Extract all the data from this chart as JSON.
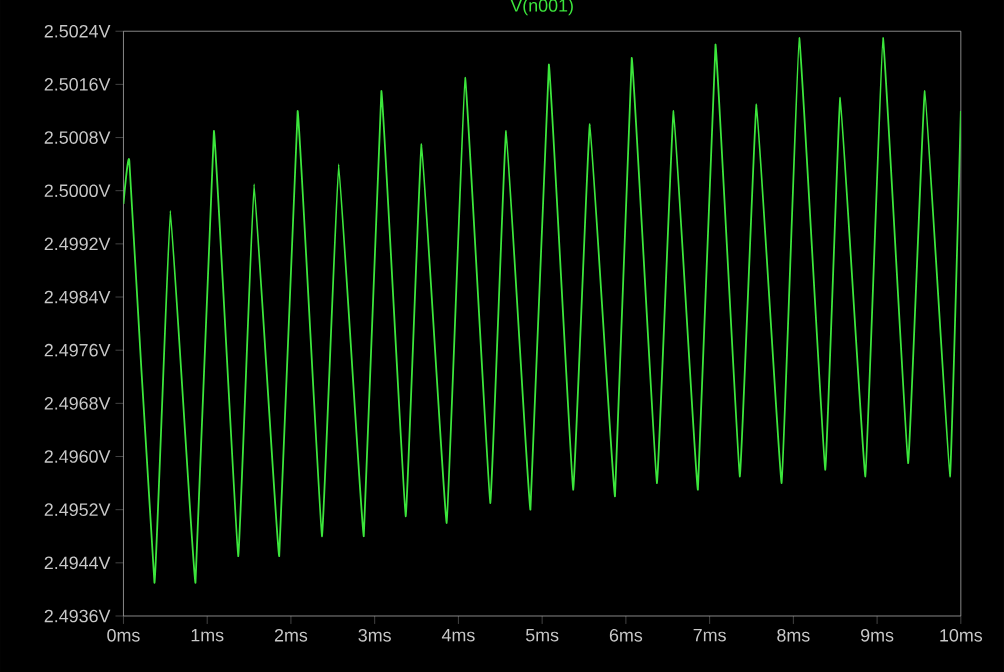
{
  "chart_data": {
    "type": "line",
    "title": "V(n001)",
    "x": [
      0,
      0.07,
      0.37,
      0.56,
      0.86,
      1.08,
      1.37,
      1.56,
      1.86,
      2.08,
      2.37,
      2.57,
      2.87,
      3.08,
      3.37,
      3.56,
      3.86,
      4.08,
      4.38,
      4.57,
      4.86,
      5.08,
      5.37,
      5.57,
      5.87,
      6.07,
      6.37,
      6.57,
      6.86,
      7.07,
      7.36,
      7.56,
      7.86,
      8.07,
      8.38,
      8.56,
      8.86,
      9.07,
      9.37,
      9.57,
      9.87,
      10
    ],
    "series": [
      {
        "color": "#3ce63c",
        "values": [
          2.4998,
          2.50045,
          2.4941,
          2.4997,
          2.4941,
          2.5009,
          2.4945,
          2.5001,
          2.4945,
          2.5012,
          2.4948,
          2.5004,
          2.4948,
          2.5015,
          2.4951,
          2.5007,
          2.495,
          2.5017,
          2.4953,
          2.5009,
          2.4952,
          2.5019,
          2.4955,
          2.501,
          2.4954,
          2.502,
          2.4956,
          2.5012,
          2.4955,
          2.5022,
          2.4957,
          2.5013,
          2.4956,
          2.5023,
          2.4958,
          2.5014,
          2.4957,
          2.5023,
          2.4959,
          2.5015,
          2.4957,
          2.5012
        ]
      }
    ],
    "xlim": [
      0,
      10
    ],
    "ylim": [
      2.4936,
      2.5024
    ],
    "xticks": [
      {
        "value": 0,
        "label": "0ms"
      },
      {
        "value": 1,
        "label": "1ms"
      },
      {
        "value": 2,
        "label": "2ms"
      },
      {
        "value": 3,
        "label": "3ms"
      },
      {
        "value": 4,
        "label": "4ms"
      },
      {
        "value": 5,
        "label": "5ms"
      },
      {
        "value": 6,
        "label": "6ms"
      },
      {
        "value": 7,
        "label": "7ms"
      },
      {
        "value": 8,
        "label": "8ms"
      },
      {
        "value": 9,
        "label": "9ms"
      },
      {
        "value": 10,
        "label": "10ms"
      }
    ],
    "yticks": [
      {
        "value": 2.4936,
        "label": "2.4936V"
      },
      {
        "value": 2.4944,
        "label": "2.4944V"
      },
      {
        "value": 2.4952,
        "label": "2.4952V"
      },
      {
        "value": 2.496,
        "label": "2.4960V"
      },
      {
        "value": 2.4968,
        "label": "2.4968V"
      },
      {
        "value": 2.4976,
        "label": "2.4976V"
      },
      {
        "value": 2.4984,
        "label": "2.4984V"
      },
      {
        "value": 2.4992,
        "label": "2.4992V"
      },
      {
        "value": 2.5,
        "label": "2.5000V"
      },
      {
        "value": 2.5008,
        "label": "2.5008V"
      },
      {
        "value": 2.5016,
        "label": "2.5016V"
      },
      {
        "value": 2.5024,
        "label": "2.5024V"
      }
    ]
  }
}
